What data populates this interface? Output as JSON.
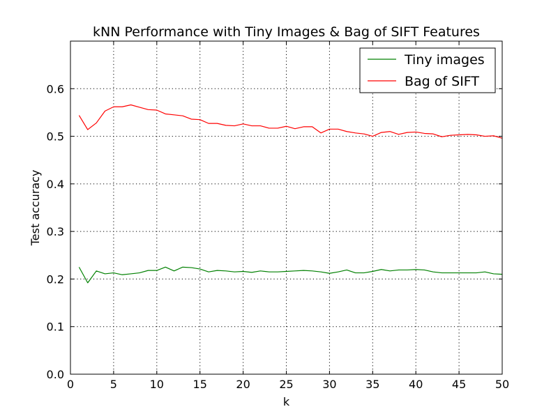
{
  "chart_data": {
    "type": "line",
    "title": "kNN Performance with Tiny Images & Bag of SIFT Features",
    "xlabel": "k",
    "ylabel": "Test accuracy",
    "xlim": [
      0,
      50
    ],
    "ylim": [
      0.0,
      0.7
    ],
    "xticks": [
      "0",
      "5",
      "10",
      "15",
      "20",
      "25",
      "30",
      "35",
      "40",
      "45",
      "50"
    ],
    "yticks": [
      "0.0",
      "0.1",
      "0.2",
      "0.3",
      "0.4",
      "0.5",
      "0.6"
    ],
    "grid": true,
    "legend_position": "top-right",
    "x": [
      1,
      2,
      3,
      4,
      5,
      6,
      7,
      8,
      9,
      10,
      11,
      12,
      13,
      14,
      15,
      16,
      17,
      18,
      19,
      20,
      21,
      22,
      23,
      24,
      25,
      26,
      27,
      28,
      29,
      30,
      31,
      32,
      33,
      34,
      35,
      36,
      37,
      38,
      39,
      40,
      41,
      42,
      43,
      44,
      45,
      46,
      47,
      48,
      49,
      50
    ],
    "series": [
      {
        "name": "Tiny images",
        "color": "#008000",
        "values": [
          0.225,
          0.192,
          0.217,
          0.211,
          0.213,
          0.209,
          0.211,
          0.213,
          0.218,
          0.218,
          0.225,
          0.217,
          0.225,
          0.224,
          0.221,
          0.215,
          0.218,
          0.217,
          0.215,
          0.216,
          0.214,
          0.217,
          0.215,
          0.215,
          0.216,
          0.217,
          0.218,
          0.217,
          0.215,
          0.212,
          0.215,
          0.219,
          0.213,
          0.213,
          0.216,
          0.22,
          0.217,
          0.219,
          0.219,
          0.22,
          0.219,
          0.215,
          0.213,
          0.213,
          0.213,
          0.213,
          0.213,
          0.215,
          0.211,
          0.21
        ]
      },
      {
        "name": "Bag of SIFT",
        "color": "#ff0000",
        "values": [
          0.544,
          0.514,
          0.528,
          0.553,
          0.562,
          0.562,
          0.566,
          0.561,
          0.556,
          0.555,
          0.547,
          0.545,
          0.543,
          0.536,
          0.535,
          0.527,
          0.527,
          0.523,
          0.522,
          0.526,
          0.522,
          0.522,
          0.517,
          0.517,
          0.521,
          0.516,
          0.52,
          0.52,
          0.507,
          0.515,
          0.515,
          0.51,
          0.507,
          0.505,
          0.5,
          0.508,
          0.51,
          0.504,
          0.508,
          0.509,
          0.506,
          0.505,
          0.499,
          0.502,
          0.503,
          0.504,
          0.503,
          0.5,
          0.501,
          0.496
        ]
      }
    ]
  }
}
